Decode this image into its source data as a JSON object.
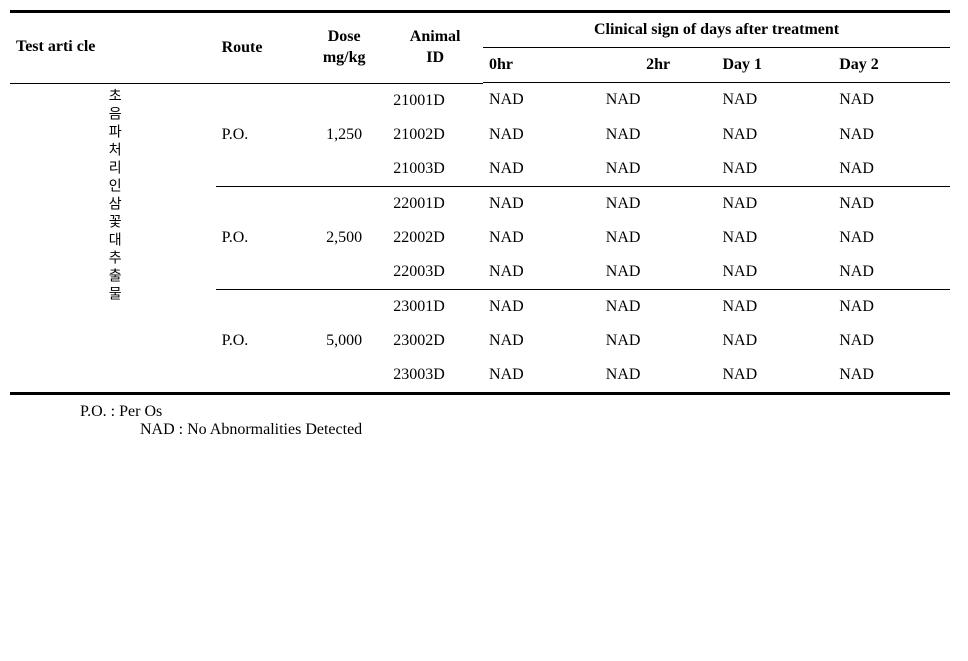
{
  "headers": {
    "test_article": "Test arti cle",
    "route": "Route",
    "dose": "Dose",
    "dose_unit": "mg/kg",
    "animal_id": "Animal",
    "animal_id2": "ID",
    "clinical_group": "Clinical sign of days after treatment",
    "hr0": "0hr",
    "hr2": "2hr",
    "day1": "Day 1",
    "day2": "Day 2"
  },
  "article_label": "초음파처리인삼꽃대추출물",
  "groups": [
    {
      "route": "P.O.",
      "dose": "1,250",
      "rows": [
        {
          "id": "21001D",
          "obs": [
            "NAD",
            "NAD",
            "NAD",
            "NAD"
          ]
        },
        {
          "id": "21002D",
          "obs": [
            "NAD",
            "NAD",
            "NAD",
            "NAD"
          ]
        },
        {
          "id": "21003D",
          "obs": [
            "NAD",
            "NAD",
            "NAD",
            "NAD"
          ]
        }
      ]
    },
    {
      "route": "P.O.",
      "dose": "2,500",
      "rows": [
        {
          "id": "22001D",
          "obs": [
            "NAD",
            "NAD",
            "NAD",
            "NAD"
          ]
        },
        {
          "id": "22002D",
          "obs": [
            "NAD",
            "NAD",
            "NAD",
            "NAD"
          ]
        },
        {
          "id": "22003D",
          "obs": [
            "NAD",
            "NAD",
            "NAD",
            "NAD"
          ]
        }
      ]
    },
    {
      "route": "P.O.",
      "dose": "5,000",
      "rows": [
        {
          "id": "23001D",
          "obs": [
            "NAD",
            "NAD",
            "NAD",
            "NAD"
          ]
        },
        {
          "id": "23002D",
          "obs": [
            "NAD",
            "NAD",
            "NAD",
            "NAD"
          ]
        },
        {
          "id": "23003D",
          "obs": [
            "NAD",
            "NAD",
            "NAD",
            "NAD"
          ]
        }
      ]
    }
  ],
  "footnotes": {
    "po": "P.O. : Per Os",
    "nad": "NAD : No Abnormalities Detected"
  }
}
